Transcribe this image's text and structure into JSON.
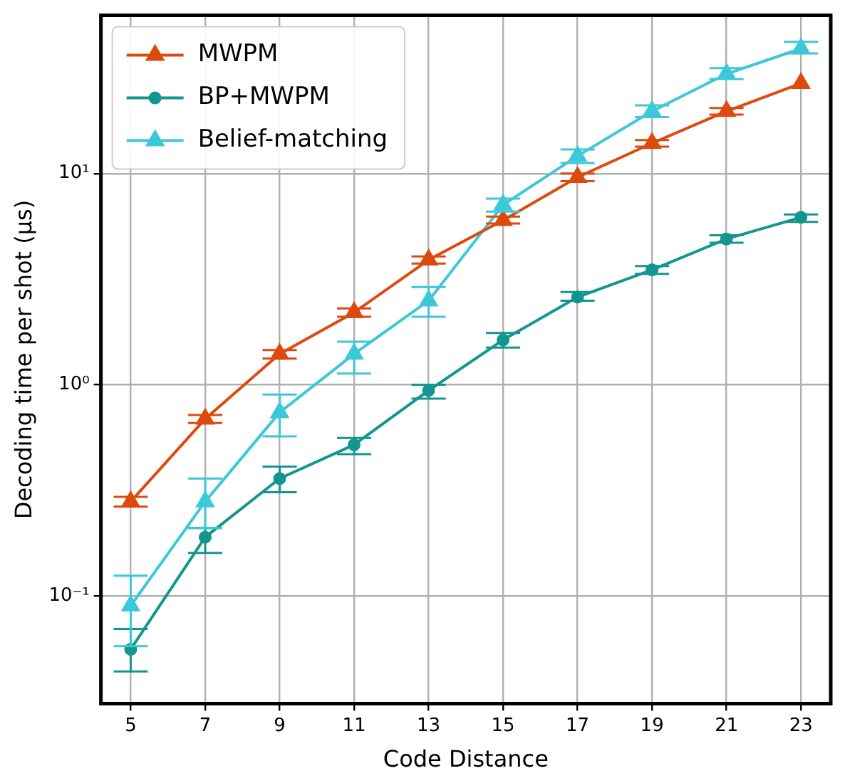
{
  "chart_data": {
    "type": "line",
    "xlabel": "Code Distance",
    "ylabel": "Decoding time per shot (μs)",
    "x": [
      5,
      7,
      9,
      11,
      13,
      15,
      17,
      19,
      21,
      23
    ],
    "xlim": [
      4.2,
      23.8
    ],
    "xticks": [
      5,
      7,
      9,
      11,
      13,
      15,
      17,
      19,
      21,
      23
    ],
    "ylim": [
      0.031,
      56
    ],
    "yticks": [
      {
        "value": 0.1,
        "label": "10⁻¹"
      },
      {
        "value": 1,
        "label": "10⁰"
      },
      {
        "value": 10,
        "label": "10¹"
      }
    ],
    "log": "y",
    "grid": true,
    "legend": "top left",
    "line_style": "solid",
    "series": [
      {
        "name": "MWPM",
        "color": "#dd4a0e",
        "marker": "triangle",
        "values": [
          0.28,
          0.69,
          1.4,
          2.2,
          3.9,
          6.0,
          9.6,
          13.9,
          19.7,
          26.7
        ],
        "errors": [
          [
            0.265,
            0.295
          ],
          [
            0.66,
            0.72
          ],
          [
            1.33,
            1.46
          ],
          [
            2.1,
            2.3
          ],
          [
            3.75,
            4.05
          ],
          [
            5.8,
            6.25
          ],
          [
            9.2,
            10
          ],
          [
            13.4,
            14.4
          ],
          [
            19,
            20.4
          ],
          null
        ]
      },
      {
        "name": "BP+MWPM",
        "color": "#13968f",
        "marker": "circle",
        "values": [
          0.056,
          0.19,
          0.36,
          0.52,
          0.94,
          1.63,
          2.6,
          3.5,
          4.9,
          6.2
        ],
        "errors": [
          [
            0.044,
            0.07
          ],
          [
            0.16,
            0.21
          ],
          [
            0.31,
            0.41
          ],
          [
            0.47,
            0.56
          ],
          [
            0.86,
            1.0
          ],
          [
            1.5,
            1.76
          ],
          [
            2.5,
            2.75
          ],
          [
            3.35,
            3.65
          ],
          [
            4.7,
            5.1
          ],
          [
            5.9,
            6.4
          ]
        ]
      },
      {
        "name": "Belief-matching",
        "color": "#3cc8d8",
        "marker": "triangle",
        "values": [
          0.09,
          0.28,
          0.74,
          1.4,
          2.5,
          7.1,
          12.1,
          19.7,
          29.6,
          39
        ],
        "errors": [
          [
            0.058,
            0.125
          ],
          [
            0.21,
            0.36
          ],
          [
            0.57,
            0.9
          ],
          [
            1.13,
            1.6
          ],
          [
            2.1,
            2.9
          ],
          [
            6.6,
            7.6
          ],
          [
            11.2,
            13
          ],
          [
            18.5,
            21
          ],
          [
            28,
            31.5
          ],
          [
            37,
            42
          ]
        ]
      }
    ]
  }
}
